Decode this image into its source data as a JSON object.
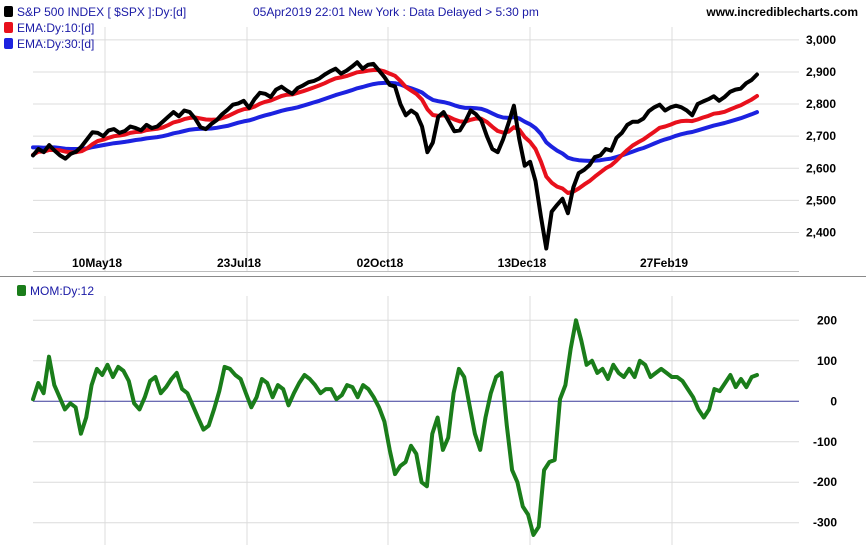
{
  "watermark": "www.incrediblecharts.com",
  "colors": {
    "price": "#000000",
    "ema10": "#e8101c",
    "ema30": "#1c22e0",
    "mom": "#1a7d1a",
    "zero_line": "#3a3a9a",
    "grid": "#dcdcdc",
    "legend_text": "#1a1aa6"
  },
  "chart_data": [
    {
      "type": "line",
      "title": "S&P 500 INDEX [ $SPX ]:Dy:[d]  05Apr2019 22:01 New York : Data Delayed > 5:30 pm",
      "x_tick_labels": [
        "10May18",
        "23Jul18",
        "02Oct18",
        "13Dec18",
        "27Feb19"
      ],
      "y_ticks": [
        "2,400",
        "2,500",
        "2,600",
        "2,700",
        "2,800",
        "2,900",
        "3,000"
      ],
      "ylim": [
        2280,
        3040
      ],
      "grid": true,
      "legend_position": "top-left",
      "series": [
        {
          "name": "S&P 500 INDEX [ $SPX ]:Dy:[d]",
          "color": "#000000",
          "values": [
            2640,
            2660,
            2650,
            2672,
            2655,
            2640,
            2630,
            2645,
            2652,
            2668,
            2690,
            2712,
            2710,
            2700,
            2718,
            2722,
            2710,
            2716,
            2730,
            2725,
            2718,
            2735,
            2725,
            2730,
            2745,
            2760,
            2775,
            2762,
            2780,
            2775,
            2755,
            2728,
            2722,
            2738,
            2750,
            2768,
            2782,
            2798,
            2802,
            2810,
            2788,
            2815,
            2835,
            2832,
            2822,
            2845,
            2854,
            2842,
            2832,
            2850,
            2858,
            2868,
            2872,
            2880,
            2892,
            2902,
            2910,
            2895,
            2904,
            2916,
            2930,
            2910,
            2922,
            2925,
            2905,
            2885,
            2860,
            2855,
            2800,
            2765,
            2780,
            2768,
            2730,
            2650,
            2680,
            2760,
            2775,
            2745,
            2715,
            2718,
            2745,
            2780,
            2768,
            2748,
            2700,
            2660,
            2650,
            2690,
            2740,
            2795,
            2690,
            2608,
            2620,
            2560,
            2450,
            2350,
            2465,
            2486,
            2505,
            2460,
            2540,
            2585,
            2595,
            2610,
            2635,
            2640,
            2660,
            2655,
            2695,
            2710,
            2735,
            2745,
            2745,
            2755,
            2778,
            2790,
            2798,
            2780,
            2790,
            2795,
            2790,
            2780,
            2765,
            2800,
            2808,
            2815,
            2824,
            2810,
            2822,
            2838,
            2845,
            2848,
            2865,
            2875,
            2892
          ]
        },
        {
          "name": "EMA:Dy:10:[d]",
          "color": "#e8101c",
          "values": [
            2642,
            2652,
            2652,
            2657,
            2657,
            2656,
            2652,
            2650,
            2650,
            2653,
            2662,
            2675,
            2685,
            2689,
            2695,
            2700,
            2702,
            2705,
            2710,
            2713,
            2714,
            2719,
            2721,
            2723,
            2727,
            2734,
            2743,
            2747,
            2753,
            2757,
            2758,
            2755,
            2752,
            2751,
            2752,
            2756,
            2762,
            2770,
            2778,
            2784,
            2786,
            2792,
            2801,
            2807,
            2811,
            2818,
            2825,
            2829,
            2830,
            2835,
            2840,
            2846,
            2852,
            2858,
            2865,
            2873,
            2880,
            2883,
            2887,
            2893,
            2899,
            2901,
            2904,
            2906,
            2906,
            2902,
            2895,
            2888,
            2872,
            2853,
            2842,
            2831,
            2814,
            2784,
            2766,
            2763,
            2765,
            2760,
            2752,
            2746,
            2745,
            2751,
            2755,
            2754,
            2744,
            2729,
            2716,
            2711,
            2714,
            2728,
            2720,
            2697,
            2682,
            2660,
            2621,
            2574,
            2555,
            2543,
            2537,
            2523,
            2527,
            2537,
            2549,
            2560,
            2574,
            2587,
            2600,
            2609,
            2624,
            2641,
            2657,
            2671,
            2681,
            2690,
            2702,
            2714,
            2726,
            2730,
            2736,
            2743,
            2747,
            2748,
            2747,
            2752,
            2758,
            2763,
            2770,
            2772,
            2776,
            2783,
            2790,
            2796,
            2805,
            2814,
            2825
          ]
        },
        {
          "name": "EMA:Dy:30:[d]",
          "color": "#1c22e0",
          "values": [
            2665,
            2665,
            2664,
            2665,
            2665,
            2663,
            2661,
            2660,
            2660,
            2660,
            2662,
            2666,
            2669,
            2672,
            2675,
            2678,
            2680,
            2682,
            2685,
            2688,
            2690,
            2693,
            2695,
            2697,
            2700,
            2704,
            2709,
            2712,
            2716,
            2720,
            2722,
            2723,
            2723,
            2724,
            2726,
            2729,
            2732,
            2737,
            2742,
            2746,
            2749,
            2754,
            2760,
            2765,
            2769,
            2774,
            2779,
            2783,
            2786,
            2790,
            2795,
            2800,
            2805,
            2810,
            2816,
            2822,
            2828,
            2833,
            2838,
            2843,
            2849,
            2853,
            2858,
            2862,
            2865,
            2866,
            2866,
            2865,
            2861,
            2854,
            2849,
            2843,
            2836,
            2823,
            2813,
            2809,
            2806,
            2802,
            2796,
            2791,
            2788,
            2788,
            2787,
            2785,
            2779,
            2771,
            2763,
            2758,
            2757,
            2759,
            2755,
            2745,
            2737,
            2725,
            2707,
            2681,
            2667,
            2655,
            2646,
            2633,
            2628,
            2625,
            2624,
            2623,
            2624,
            2625,
            2628,
            2630,
            2635,
            2640,
            2646,
            2652,
            2658,
            2663,
            2670,
            2677,
            2684,
            2690,
            2695,
            2701,
            2706,
            2710,
            2713,
            2718,
            2723,
            2728,
            2733,
            2737,
            2741,
            2746,
            2751,
            2756,
            2762,
            2768,
            2775
          ]
        }
      ]
    },
    {
      "type": "line",
      "title": "MOM:Dy:12",
      "y_ticks": [
        "-300",
        "-200",
        "-100",
        "0",
        "100",
        "200"
      ],
      "ylim": [
        -355,
        260
      ],
      "grid": true,
      "legend_position": "top-left",
      "series": [
        {
          "name": "MOM:Dy:12",
          "color": "#1a7d1a",
          "values": [
            5,
            45,
            20,
            110,
            40,
            10,
            -20,
            -5,
            -15,
            -80,
            -40,
            40,
            80,
            65,
            90,
            60,
            85,
            75,
            50,
            -5,
            -20,
            10,
            50,
            60,
            20,
            35,
            55,
            70,
            30,
            20,
            -10,
            -40,
            -70,
            -60,
            -20,
            25,
            85,
            80,
            65,
            55,
            20,
            -15,
            10,
            55,
            45,
            10,
            40,
            30,
            -10,
            20,
            45,
            65,
            55,
            40,
            20,
            30,
            30,
            5,
            15,
            40,
            35,
            10,
            40,
            30,
            10,
            -15,
            -50,
            -120,
            -180,
            -160,
            -150,
            -110,
            -130,
            -200,
            -210,
            -80,
            -40,
            -120,
            -90,
            20,
            80,
            60,
            -10,
            -80,
            -120,
            -40,
            20,
            60,
            70,
            -60,
            -170,
            -200,
            -260,
            -280,
            -330,
            -310,
            -170,
            -150,
            -145,
            5,
            40,
            130,
            200,
            150,
            90,
            100,
            70,
            80,
            55,
            90,
            70,
            60,
            80,
            60,
            100,
            90,
            60,
            70,
            80,
            70,
            60,
            60,
            50,
            30,
            10,
            -20,
            -40,
            -20,
            30,
            25,
            45,
            65,
            35,
            55,
            35,
            60,
            65
          ]
        }
      ]
    }
  ]
}
